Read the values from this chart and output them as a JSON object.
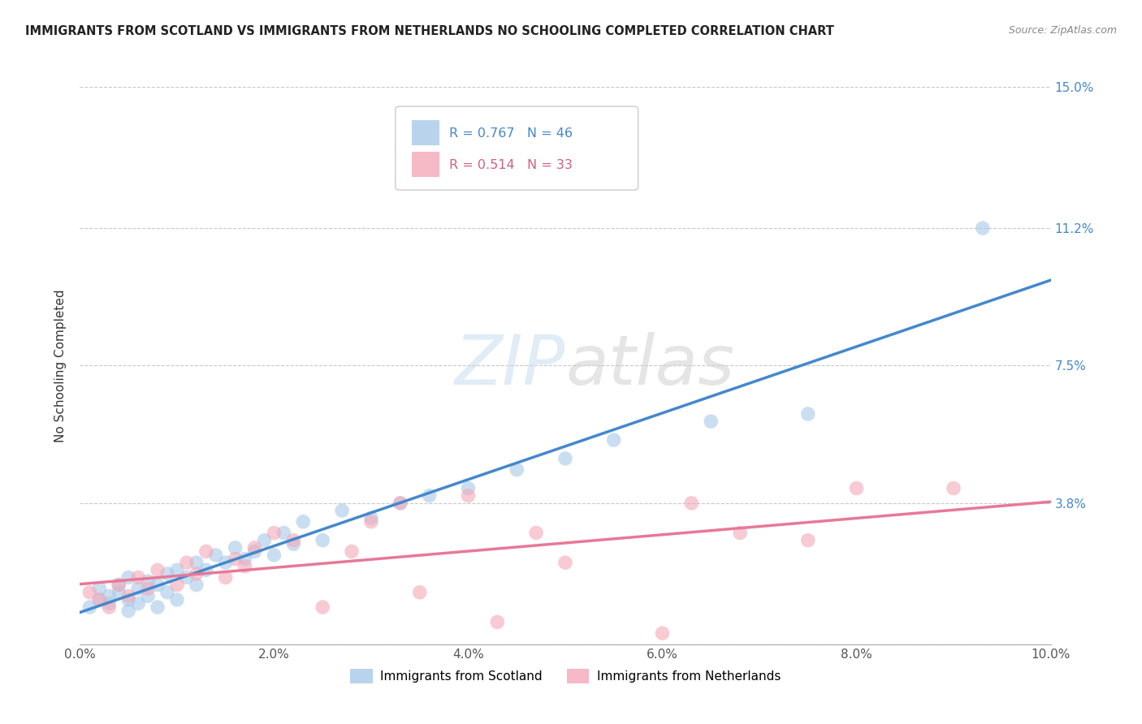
{
  "title": "IMMIGRANTS FROM SCOTLAND VS IMMIGRANTS FROM NETHERLANDS NO SCHOOLING COMPLETED CORRELATION CHART",
  "source": "Source: ZipAtlas.com",
  "ylabel": "No Schooling Completed",
  "legend_label1": "Immigrants from Scotland",
  "legend_label2": "Immigrants from Netherlands",
  "R1": 0.767,
  "N1": 46,
  "R2": 0.514,
  "N2": 33,
  "xlim": [
    0.0,
    0.1
  ],
  "ylim": [
    0.0,
    0.15
  ],
  "xticks": [
    0.0,
    0.02,
    0.04,
    0.06,
    0.08,
    0.1
  ],
  "yticks": [
    0.0,
    0.038,
    0.075,
    0.112,
    0.15
  ],
  "ytick_labels": [
    "",
    "3.8%",
    "7.5%",
    "11.2%",
    "15.0%"
  ],
  "xtick_labels": [
    "0.0%",
    "2.0%",
    "4.0%",
    "6.0%",
    "8.0%",
    "10.0%"
  ],
  "color_scotland": "#a8c8e8",
  "color_netherlands": "#f4a8b8",
  "color_line_scotland": "#4488cc",
  "color_line_netherlands": "#e87898",
  "scotland_x": [
    0.001,
    0.002,
    0.002,
    0.003,
    0.003,
    0.004,
    0.004,
    0.005,
    0.005,
    0.005,
    0.006,
    0.006,
    0.007,
    0.007,
    0.008,
    0.008,
    0.009,
    0.009,
    0.01,
    0.01,
    0.011,
    0.012,
    0.012,
    0.013,
    0.014,
    0.015,
    0.016,
    0.017,
    0.018,
    0.019,
    0.02,
    0.021,
    0.022,
    0.023,
    0.025,
    0.027,
    0.03,
    0.033,
    0.036,
    0.04,
    0.045,
    0.05,
    0.055,
    0.065,
    0.075,
    0.093
  ],
  "scotland_y": [
    0.01,
    0.012,
    0.015,
    0.011,
    0.013,
    0.014,
    0.016,
    0.009,
    0.012,
    0.018,
    0.011,
    0.015,
    0.013,
    0.017,
    0.01,
    0.016,
    0.014,
    0.019,
    0.012,
    0.02,
    0.018,
    0.016,
    0.022,
    0.02,
    0.024,
    0.022,
    0.026,
    0.023,
    0.025,
    0.028,
    0.024,
    0.03,
    0.027,
    0.033,
    0.028,
    0.036,
    0.034,
    0.038,
    0.04,
    0.042,
    0.047,
    0.05,
    0.055,
    0.06,
    0.062,
    0.112
  ],
  "netherlands_x": [
    0.001,
    0.002,
    0.003,
    0.004,
    0.005,
    0.006,
    0.007,
    0.008,
    0.01,
    0.011,
    0.012,
    0.013,
    0.015,
    0.016,
    0.017,
    0.018,
    0.02,
    0.022,
    0.025,
    0.028,
    0.03,
    0.033,
    0.035,
    0.04,
    0.043,
    0.047,
    0.05,
    0.06,
    0.063,
    0.068,
    0.075,
    0.08,
    0.09
  ],
  "netherlands_y": [
    0.014,
    0.012,
    0.01,
    0.016,
    0.013,
    0.018,
    0.015,
    0.02,
    0.016,
    0.022,
    0.019,
    0.025,
    0.018,
    0.023,
    0.021,
    0.026,
    0.03,
    0.028,
    0.01,
    0.025,
    0.033,
    0.038,
    0.014,
    0.04,
    0.006,
    0.03,
    0.022,
    0.003,
    0.038,
    0.03,
    0.028,
    0.042,
    0.042
  ],
  "scatter_size": 160,
  "watermark_zip": "ZIP",
  "watermark_atlas": "atlas",
  "background_color": "#ffffff",
  "grid_color": "#c8c8c8"
}
